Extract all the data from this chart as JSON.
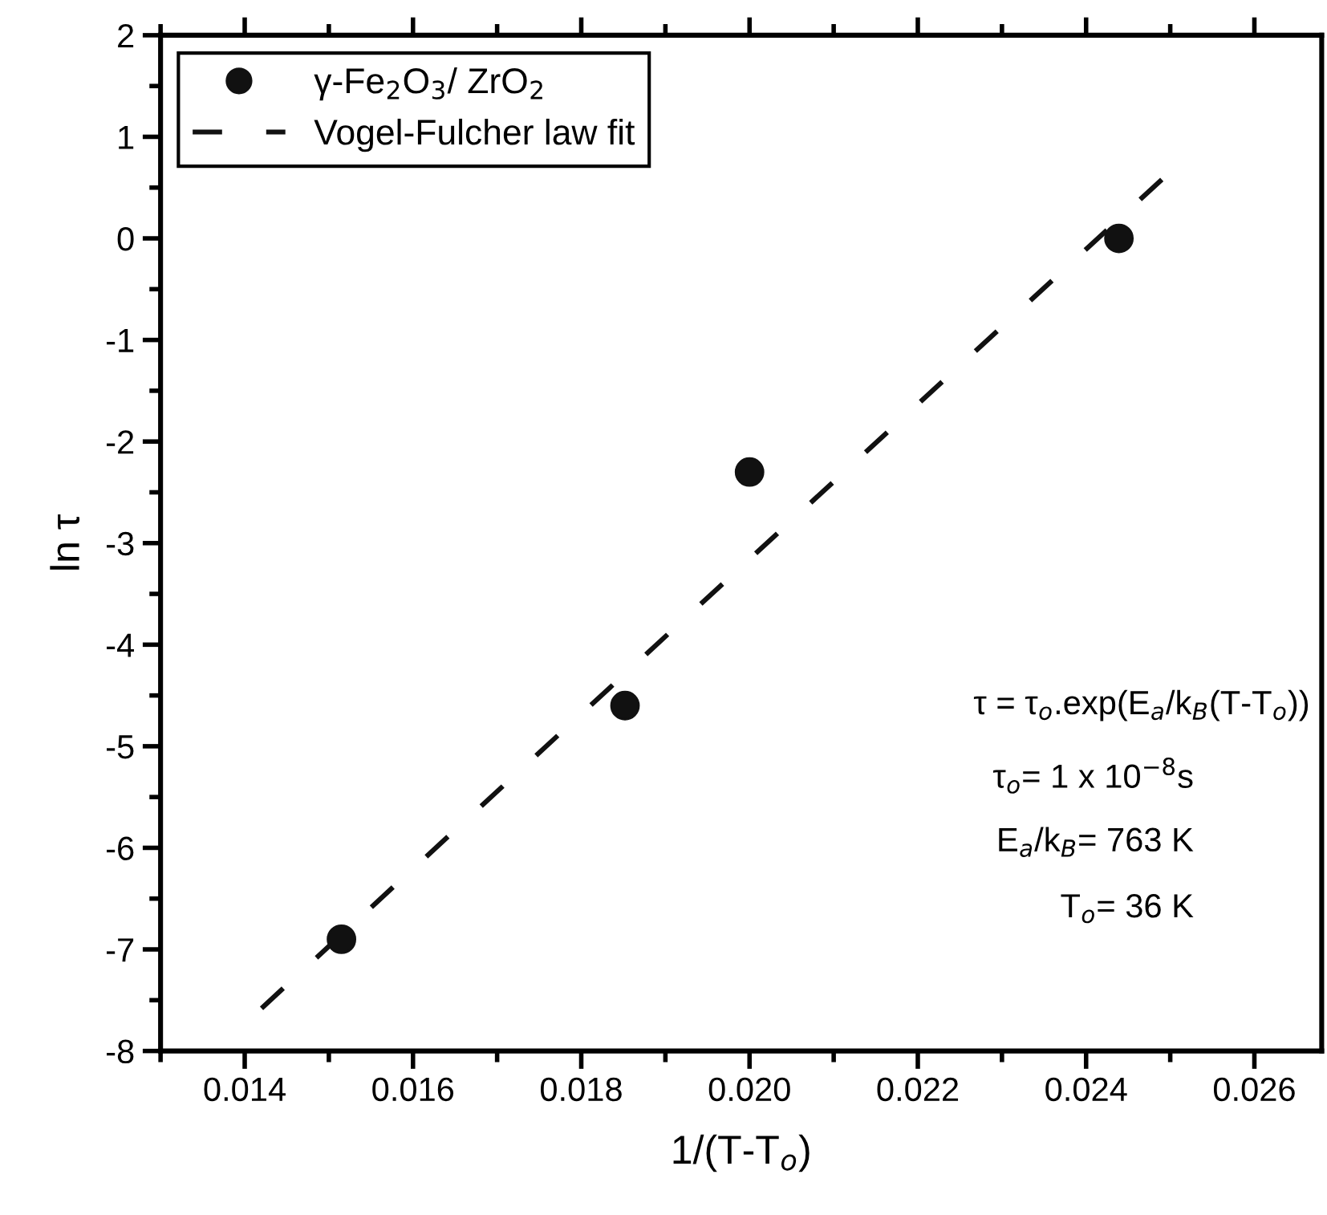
{
  "chart_data": {
    "type": "scatter",
    "xlabel": "1/(T-T$_{o}$)",
    "ylabel": "ln τ",
    "series": [
      {
        "name": "γ-Fe$_{2}$O$_{3}$/ ZrO$_{2}$",
        "color": "#111111",
        "marker": "circle",
        "x": [
          0.01515,
          0.01852,
          0.02,
          0.02439
        ],
        "values": [
          -6.9,
          -4.6,
          -2.3,
          0.0
        ]
      },
      {
        "name": "Vogel-Fulcher law fit",
        "type": "line",
        "color": "#111111",
        "marker": "none",
        "line_style": "dashed",
        "x": [
          0.0142,
          0.0249
        ],
        "values": [
          -7.58,
          0.58
        ]
      }
    ],
    "xlim": [
      0.013,
      0.0268
    ],
    "xticks": [
      {
        "value": 0.014,
        "label": "0.014"
      },
      {
        "value": 0.016,
        "label": "0.016"
      },
      {
        "value": 0.018,
        "label": "0.018"
      },
      {
        "value": 0.02,
        "label": "0.020"
      },
      {
        "value": 0.022,
        "label": "0.022"
      },
      {
        "value": 0.024,
        "label": "0.024"
      },
      {
        "value": 0.026,
        "label": "0.026"
      }
    ],
    "ylim": [
      -8,
      2
    ],
    "yticks": [
      -8,
      -7,
      -6,
      -5,
      -4,
      -3,
      -2,
      -1,
      0,
      1,
      2
    ],
    "legend": "top left",
    "grid": false,
    "annotations": [
      "τ = τ$_{o}$.exp(E$_{a}$/k$_{B}$(T-T$_{o}$))",
      "τ$_{o}$= 1 x 10$^{−8}$s",
      "E$_{a}$/k$_{B}$= 763 K",
      "T$_{o}$= 36 K"
    ]
  }
}
